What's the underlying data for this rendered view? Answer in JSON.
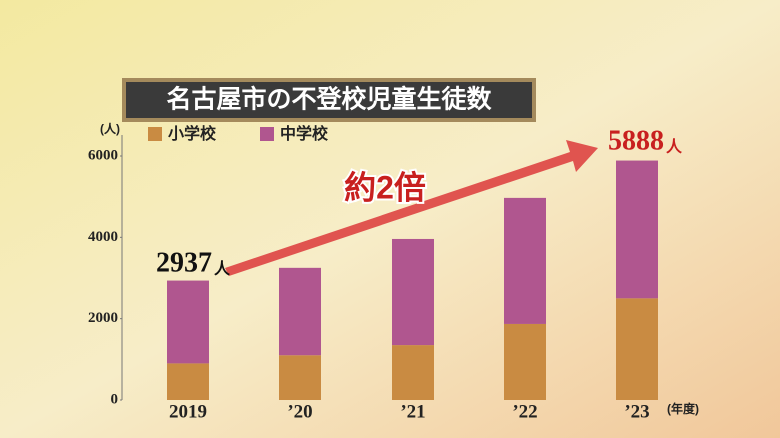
{
  "chart_data": {
    "type": "stacked-bar",
    "title": "名古屋市の不登校児童生徒数",
    "y_unit": "(人)",
    "x_unit": "(年度)",
    "categories": [
      "2019",
      "’20",
      "’21",
      "’22",
      "’23"
    ],
    "series": [
      {
        "name": "小学校",
        "color": "#c98b42",
        "values": [
          900,
          1100,
          1350,
          1870,
          2500
        ]
      },
      {
        "name": "中学校",
        "color": "#b0568f",
        "values": [
          2037,
          2150,
          2610,
          3100,
          3388
        ]
      }
    ],
    "ylim": [
      0,
      6000
    ],
    "yticks": [
      0,
      2000,
      4000,
      6000
    ],
    "annotations": [
      {
        "text": "2937",
        "unit": "人"
      },
      {
        "text": "5888",
        "unit": "人"
      },
      {
        "text": "約2倍"
      }
    ]
  }
}
